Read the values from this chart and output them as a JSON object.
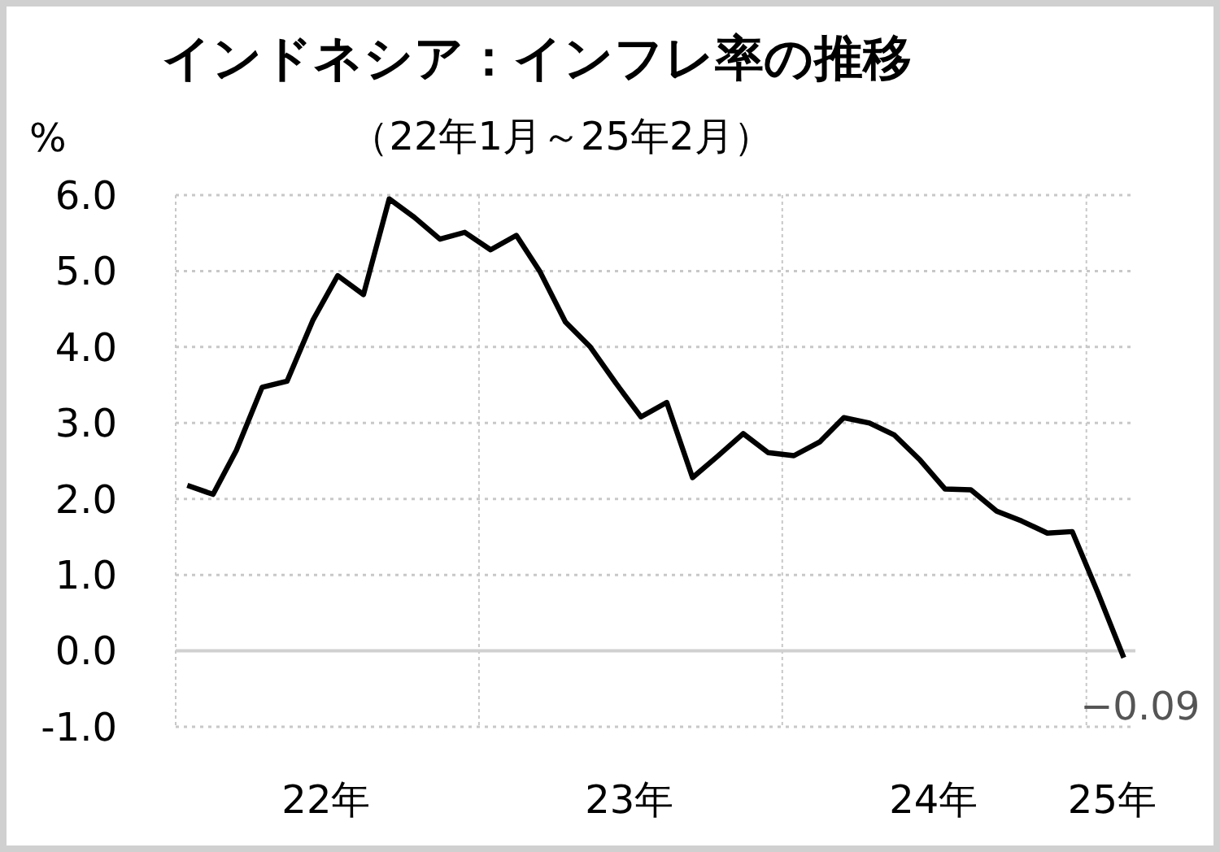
{
  "chart_data": {
    "type": "line",
    "title": "インドネシア：インフレ率の推移",
    "subtitle": "（22年1月～25年2月）",
    "ylabel": "%",
    "x": [
      "2022-01-15",
      "2022-02-15",
      "2022-03-15",
      "2022-04-15",
      "2022-05-15",
      "2022-06-15",
      "2022-07-15",
      "2022-08-15",
      "2022-09-15",
      "2022-10-15",
      "2022-11-15",
      "2022-12-15",
      "2023-01-15",
      "2023-02-15",
      "2023-03-15",
      "2023-04-15",
      "2023-05-15",
      "2023-06-15",
      "2023-07-15",
      "2023-08-15",
      "2023-09-15",
      "2023-10-15",
      "2023-11-15",
      "2023-12-15",
      "2024-01-15",
      "2024-02-15",
      "2024-03-15",
      "2024-04-15",
      "2024-05-15",
      "2024-06-15",
      "2024-07-15",
      "2024-08-15",
      "2024-09-15",
      "2024-10-15",
      "2024-11-15",
      "2024-12-15",
      "2025-01-15",
      "2025-02-15"
    ],
    "series": [
      {
        "color": "#000000",
        "values": [
          2.18,
          2.06,
          2.64,
          3.47,
          3.55,
          4.35,
          4.94,
          4.69,
          5.95,
          5.71,
          5.42,
          5.51,
          5.28,
          5.47,
          5.0,
          4.33,
          4.0,
          3.52,
          3.08,
          3.27,
          2.28,
          2.56,
          2.86,
          2.61,
          2.57,
          2.75,
          3.07,
          3.0,
          2.84,
          2.51,
          2.13,
          2.12,
          1.84,
          1.71,
          1.55,
          1.57,
          0.76,
          -0.09
        ]
      }
    ],
    "xlim": [
      "2022-01-01",
      "2025-03-01"
    ],
    "xticks": [
      {
        "value": "2022-07-01",
        "label": "22年"
      },
      {
        "value": "2023-01-01",
        "label": null
      },
      {
        "value": "2023-07-01",
        "label": "23年"
      },
      {
        "value": "2024-01-01",
        "label": null
      },
      {
        "value": "2024-07-01",
        "label": "24年"
      },
      {
        "value": "2025-01-01",
        "label": null
      },
      {
        "value": "2025-02-01",
        "label": "25年"
      }
    ],
    "ylim": [
      -1.0,
      6.0
    ],
    "yticks": [
      {
        "value": -1,
        "label": "-1.0"
      },
      {
        "value": 0,
        "label": "0.0"
      },
      {
        "value": 1,
        "label": "1.0"
      },
      {
        "value": 2,
        "label": "2.0"
      },
      {
        "value": 3,
        "label": "3.0"
      },
      {
        "value": 4,
        "label": "4.0"
      },
      {
        "value": 5,
        "label": "5.0"
      },
      {
        "value": 6,
        "label": "6.0"
      }
    ],
    "grid": true,
    "line_style": "solid",
    "marker": "none",
    "annotations": [
      {
        "text": "−0.09",
        "x": "2025-02-15",
        "y": -0.09
      }
    ]
  }
}
